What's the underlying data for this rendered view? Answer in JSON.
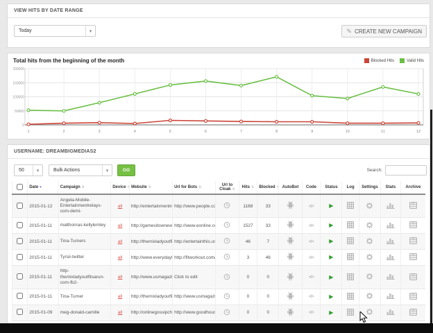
{
  "date_range_panel": {
    "title": "VIEW HITS BY DATE RANGE",
    "dropdown_value": "Today",
    "create_button_label": "CREATE NEW CAMPAIGN"
  },
  "chart_panel": {
    "title": "Total hits from the beginning of the month"
  },
  "chart_data": {
    "type": "line",
    "title": "Total hits from the beginning of the month",
    "x": [
      1,
      2,
      3,
      4,
      5,
      6,
      7,
      8,
      9,
      10,
      11,
      12
    ],
    "series": [
      {
        "name": "Blocked Hits",
        "color": "#cb4437",
        "values": [
          2000,
          6000,
          8000,
          5000,
          16000,
          14000,
          12000,
          11000,
          11000,
          6000,
          6000,
          7000
        ]
      },
      {
        "name": "Valid Hits",
        "color": "#6abf45",
        "values": [
          52000,
          50000,
          79000,
          110000,
          142000,
          156000,
          140000,
          171000,
          104000,
          94000,
          135000,
          110000
        ]
      }
    ],
    "ylim": [
      0,
      200000
    ],
    "yticks": [
      0,
      50000,
      100000,
      150000,
      200000
    ],
    "grid": true,
    "legend_position": "top-right"
  },
  "table_panel": {
    "title": "USERNAME: DREAMBIGMEDIAS2",
    "page_size_value": "50",
    "bulk_actions_value": "Bulk Actions",
    "go_button_label": "GO",
    "search_label": "Search:",
    "search_value": "",
    "columns": [
      "Date",
      "Campaign",
      "Device",
      "Website",
      "Url for Bots",
      "Url to Cloak",
      "Hits",
      "Blocked",
      "AutoBot",
      "Code",
      "Status",
      "Log",
      "Settings",
      "Stats",
      "Archive"
    ],
    "rows": [
      {
        "date": "2015-01-12",
        "campaign": "Angela-Mobile-Entertainmentrelays-com-demi-",
        "device": "all",
        "website": "http://entertainmentrela...",
        "url_for_bots": "http://www.people.com/ar...",
        "hits": "1168",
        "blocked": "33"
      },
      {
        "date": "2015-01-11",
        "campaign": "malthomas-kellylemley",
        "device": "all",
        "website": "http://gamesitownews.net",
        "url_for_bots": "http://www.eonline.com/n...",
        "hits": "1527",
        "blocked": "33"
      },
      {
        "date": "2015-01-11",
        "campaign": "Tina-Turners",
        "device": "all",
        "website": "http://themixladyoutfitsar...",
        "url_for_bots": "http://entertainthis.usatod...",
        "hits": "46",
        "blocked": "7"
      },
      {
        "date": "2015-01-11",
        "campaign": "Tyrsii-twitter",
        "device": "all",
        "website": "http://www.everydayfitnes...",
        "url_for_bots": "http://fitworkout.com/",
        "hits": "3",
        "blocked": "46"
      },
      {
        "date": "2015-01-11",
        "campaign": "http-themixladyoutfitsarun-com-fb2-",
        "device": "all",
        "website": "http://www.usmagazine.c...",
        "url_for_bots": "Click to edit",
        "hits": "0",
        "blocked": "0"
      },
      {
        "date": "2015-01-11",
        "campaign": "Tina-Turner",
        "device": "all",
        "website": "http://themixladyoutfitsar...",
        "url_for_bots": "http://www.usmagazine.c...",
        "hits": "0",
        "blocked": "0"
      },
      {
        "date": "2015-01-09",
        "campaign": "meg-donald-camille",
        "device": "all",
        "website": "http://onlinegossipchann...",
        "url_for_bots": "http://www.goodhouseke...",
        "hits": "0",
        "blocked": "0"
      }
    ]
  }
}
